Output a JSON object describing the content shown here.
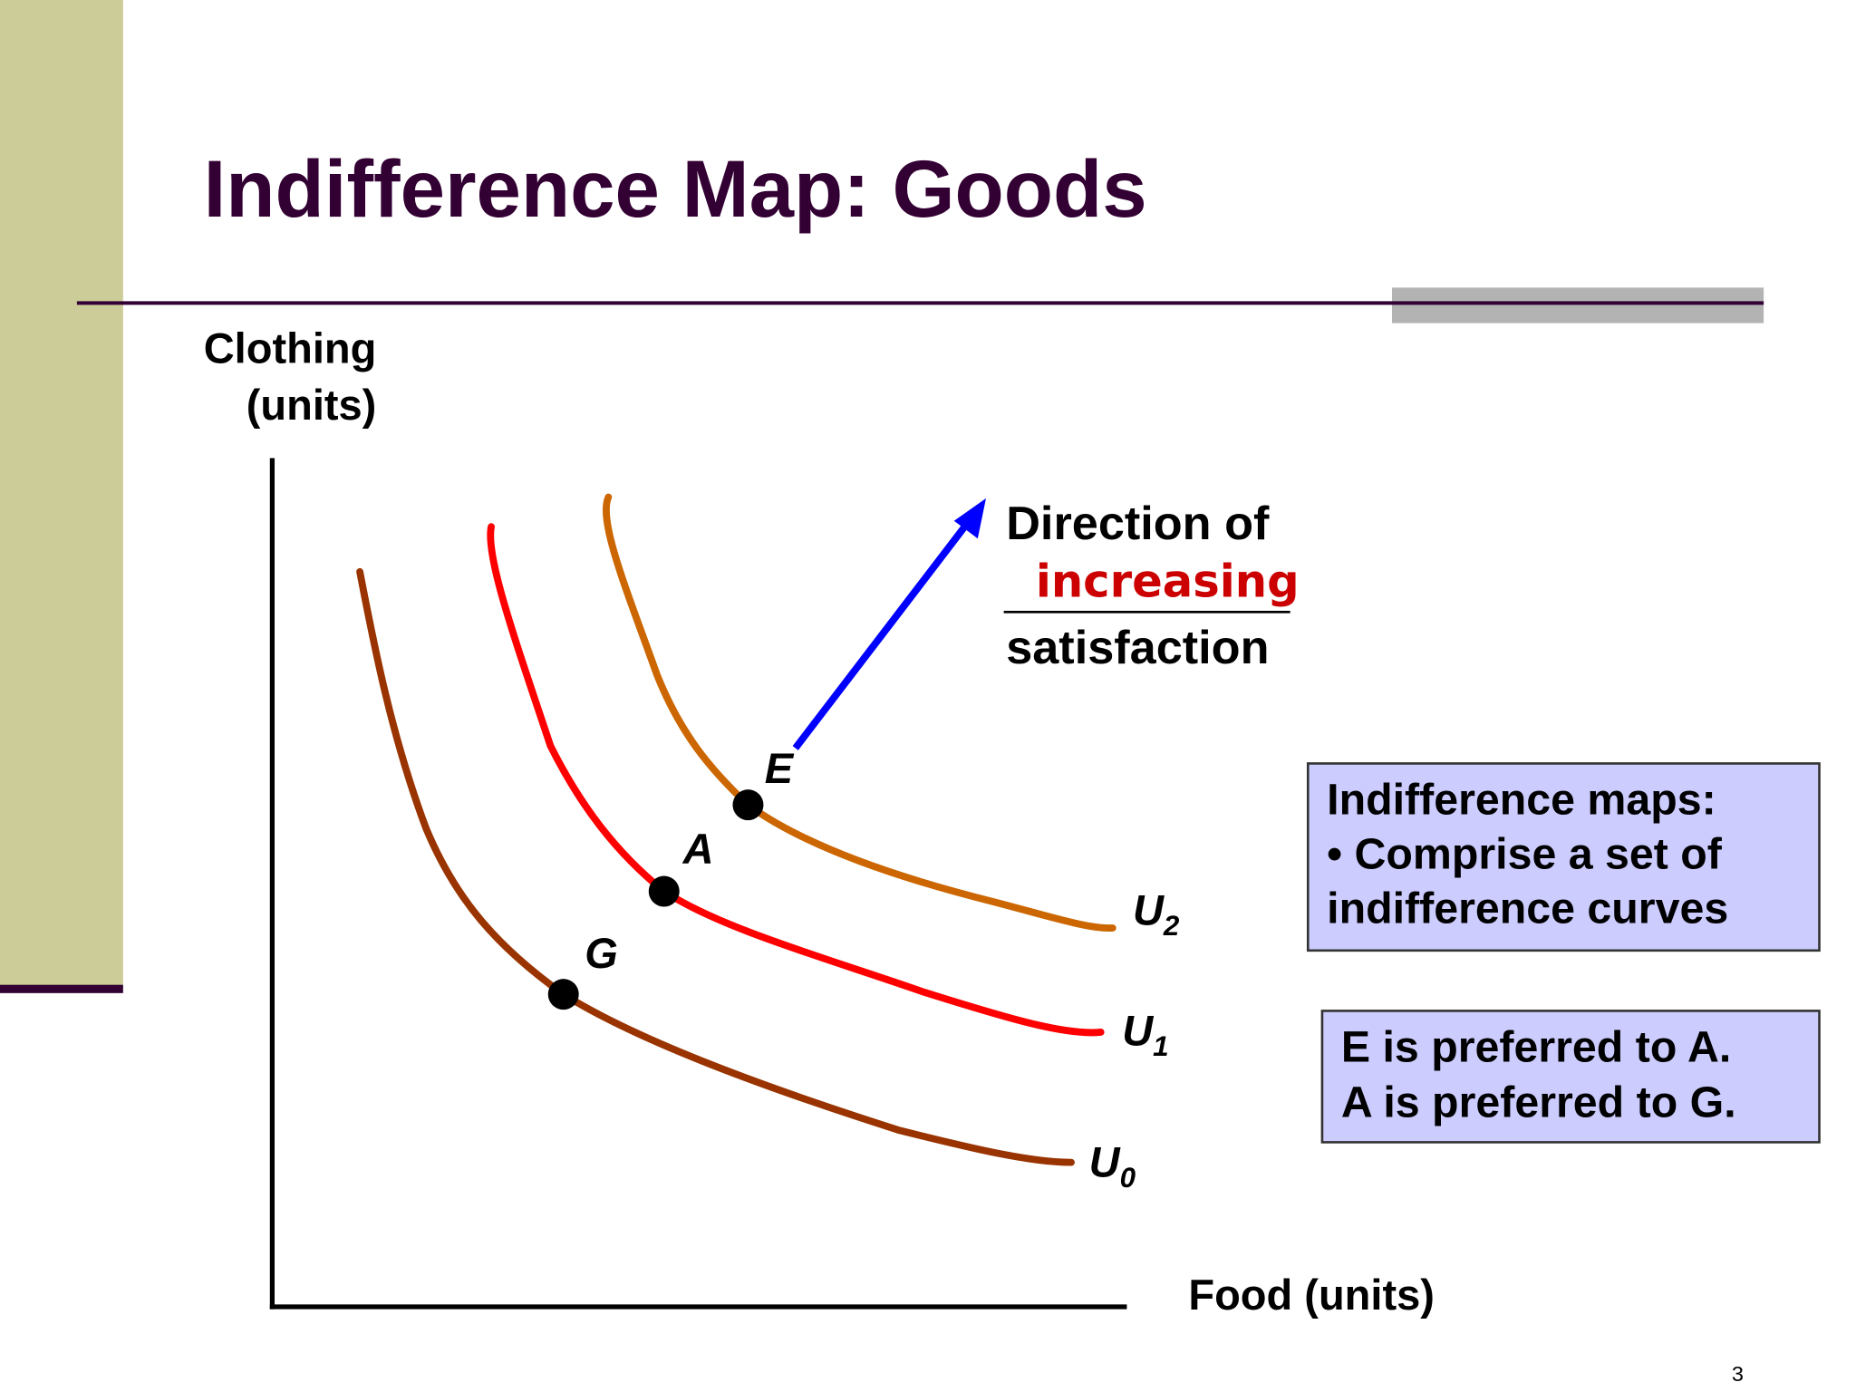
{
  "header": {
    "title": "Indifference Map: Goods"
  },
  "axes": {
    "y_label": [
      "Clothing",
      "(units)"
    ],
    "x_label": "Food (units)"
  },
  "curves": [
    {
      "label": "U",
      "subscript": "0"
    },
    {
      "label": "U",
      "subscript": "1"
    },
    {
      "label": "U",
      "subscript": "2"
    }
  ],
  "points": [
    {
      "label": "G"
    },
    {
      "label": "A"
    },
    {
      "label": "E"
    }
  ],
  "annotation": {
    "lines": [
      "Direction of",
      "increasing",
      "satisfaction"
    ]
  },
  "boxes": [
    {
      "lines": [
        "Indifference maps:",
        "• Comprise a set of",
        "indifference curves"
      ]
    },
    {
      "lines": [
        "E is preferred to A.",
        "A is preferred to G."
      ]
    }
  ],
  "page_number": "3"
}
